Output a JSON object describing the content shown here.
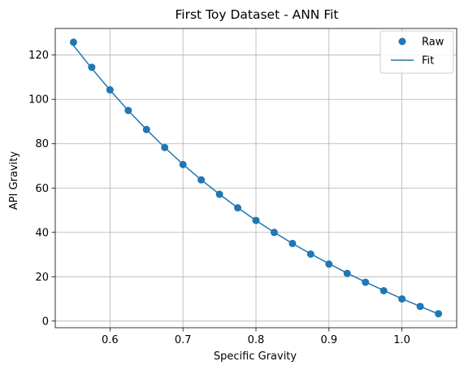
{
  "chart_data": {
    "type": "scatter",
    "title": "First Toy Dataset - ANN Fit",
    "xlabel": "Specific Gravity",
    "ylabel": "API Gravity",
    "xlim": [
      0.525,
      1.075
    ],
    "ylim": [
      -3,
      132
    ],
    "xticks": [
      0.6,
      0.7,
      0.8,
      0.9,
      1.0
    ],
    "xtick_labels": [
      "0.6",
      "0.7",
      "0.8",
      "0.9",
      "1.0"
    ],
    "yticks": [
      0,
      20,
      40,
      60,
      80,
      100,
      120
    ],
    "ytick_labels": [
      "0",
      "20",
      "40",
      "60",
      "80",
      "100",
      "120"
    ],
    "grid": true,
    "legend_position": "top-right",
    "colors": {
      "series": "#1f77b4",
      "grid": "#b0b0b0",
      "axis": "#000000"
    },
    "series": [
      {
        "name": "Raw",
        "kind": "scatter",
        "x": [
          0.55,
          0.575,
          0.6,
          0.625,
          0.65,
          0.675,
          0.7,
          0.725,
          0.75,
          0.775,
          0.8,
          0.825,
          0.85,
          0.875,
          0.9,
          0.925,
          0.95,
          0.975,
          1.0,
          1.025,
          1.05
        ],
        "y": [
          125.8,
          114.5,
          104.3,
          95.0,
          86.4,
          78.3,
          70.6,
          63.7,
          57.2,
          51.1,
          45.4,
          40.0,
          35.0,
          30.2,
          25.7,
          21.5,
          17.5,
          13.7,
          10.0,
          6.6,
          3.3
        ]
      },
      {
        "name": "Fit",
        "kind": "line",
        "x": [
          0.55,
          0.575,
          0.6,
          0.625,
          0.65,
          0.675,
          0.7,
          0.725,
          0.75,
          0.775,
          0.8,
          0.825,
          0.85,
          0.875,
          0.9,
          0.925,
          0.95,
          0.975,
          1.0,
          1.025,
          1.05
        ],
        "y": [
          124.3,
          114.0,
          104.2,
          95.0,
          86.4,
          78.3,
          70.7,
          63.7,
          57.2,
          51.1,
          45.4,
          40.0,
          35.0,
          30.3,
          25.9,
          21.6,
          17.6,
          13.8,
          10.1,
          6.6,
          3.2
        ]
      }
    ]
  }
}
